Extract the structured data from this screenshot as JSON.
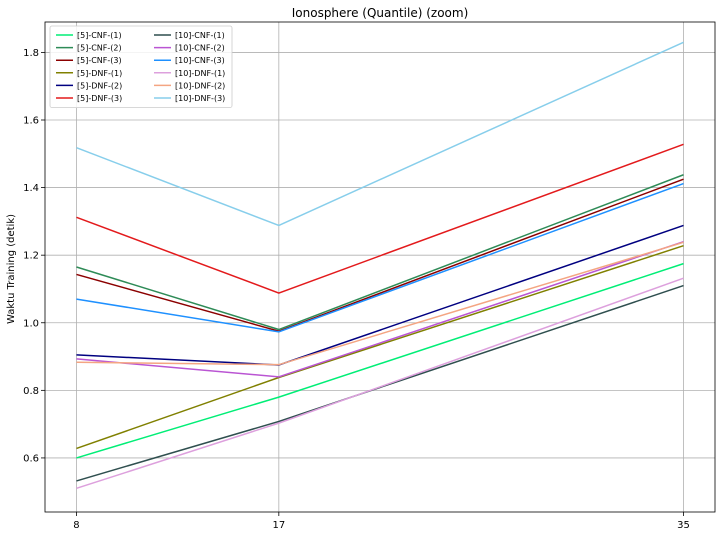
{
  "chart_data": {
    "type": "line",
    "title": "Ionosphere (Quantile) (zoom)",
    "xlabel": "",
    "ylabel": "Waktu Training (detik)",
    "x": [
      8,
      17,
      35
    ],
    "x_ticks": [
      "8",
      "17",
      "35"
    ],
    "y_ticks": [
      "0.6",
      "0.8",
      "1.0",
      "1.2",
      "1.4",
      "1.6",
      "1.8"
    ],
    "ylim": [
      0.44,
      1.89
    ],
    "xlim": [
      6.6,
      36.4
    ],
    "grid": true,
    "legend_position": "top-left",
    "legend_columns": 2,
    "series": [
      {
        "name": "[5]-CNF-(1)",
        "color": "#00ee76",
        "values": [
          0.6,
          0.78,
          1.175
        ]
      },
      {
        "name": "[5]-CNF-(2)",
        "color": "#2e8b57",
        "values": [
          1.165,
          0.98,
          1.438
        ]
      },
      {
        "name": "[5]-CNF-(3)",
        "color": "#8b0000",
        "values": [
          1.143,
          0.975,
          1.425
        ]
      },
      {
        "name": "[5]-DNF-(1)",
        "color": "#808000",
        "values": [
          0.628,
          0.838,
          1.228
        ]
      },
      {
        "name": "[5]-DNF-(2)",
        "color": "#000080",
        "values": [
          0.905,
          0.875,
          1.288
        ]
      },
      {
        "name": "[5]-DNF-(3)",
        "color": "#e31a1c",
        "values": [
          1.312,
          1.088,
          1.528
        ]
      },
      {
        "name": "[10]-CNF-(1)",
        "color": "#2f4f4f",
        "values": [
          0.532,
          0.708,
          1.11
        ]
      },
      {
        "name": "[10]-CNF-(2)",
        "color": "#ba55d3",
        "values": [
          0.893,
          0.84,
          1.24
        ]
      },
      {
        "name": "[10]-CNF-(3)",
        "color": "#1e90ff",
        "values": [
          1.07,
          0.973,
          1.412
        ]
      },
      {
        "name": "[10]-DNF-(1)",
        "color": "#dda0dd",
        "values": [
          0.51,
          0.703,
          1.132
        ]
      },
      {
        "name": "[10]-DNF-(2)",
        "color": "#f4a582",
        "values": [
          0.883,
          0.876,
          1.238
        ]
      },
      {
        "name": "[10]-DNF-(3)",
        "color": "#87ceeb",
        "values": [
          1.518,
          1.288,
          1.83
        ]
      }
    ]
  }
}
